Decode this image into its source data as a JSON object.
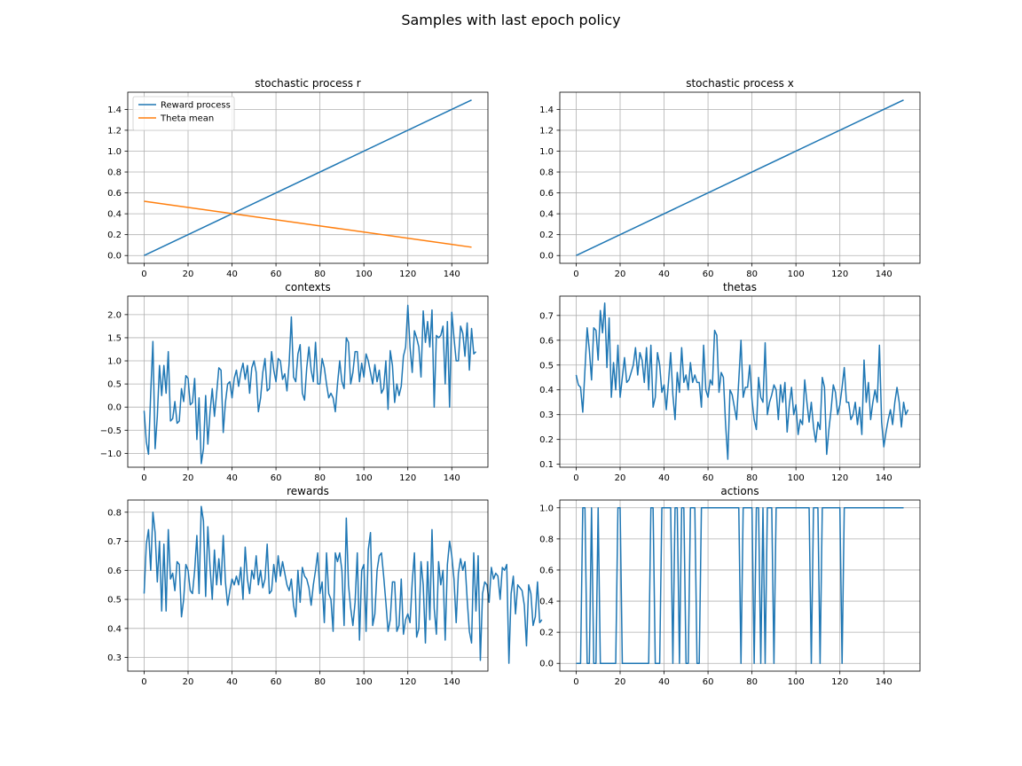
{
  "figure": {
    "title": "Samples with last epoch policy",
    "colors": {
      "blue": "#1f77b4",
      "orange": "#ff7f0e",
      "grid": "#b0b0b0"
    }
  },
  "chart_data": [
    {
      "id": "r",
      "type": "line",
      "title": "stochastic process r",
      "xlim": [
        -7.45,
        156.45
      ],
      "ylim": [
        -0.0745,
        1.5645
      ],
      "xticks": [
        0,
        20,
        40,
        60,
        80,
        100,
        120,
        140
      ],
      "yticks": [
        0.0,
        0.2,
        0.4,
        0.6,
        0.8,
        1.0,
        1.2,
        1.4
      ],
      "ytick_decimals": 1,
      "grid": true,
      "legend": {
        "placement": "top-left",
        "entries": [
          "Reward process",
          "Theta mean"
        ]
      },
      "series": [
        {
          "name": "Reward process",
          "color": "#1f77b4",
          "x": [
            0,
            149
          ],
          "y": [
            0.0,
            1.49
          ]
        },
        {
          "name": "Theta mean",
          "color": "#ff7f0e",
          "x": [
            0,
            149
          ],
          "y": [
            0.52,
            0.08
          ]
        }
      ]
    },
    {
      "id": "x",
      "type": "line",
      "title": "stochastic process x",
      "xlim": [
        -7.45,
        156.45
      ],
      "ylim": [
        -0.0745,
        1.5645
      ],
      "xticks": [
        0,
        20,
        40,
        60,
        80,
        100,
        120,
        140
      ],
      "yticks": [
        0.0,
        0.2,
        0.4,
        0.6,
        0.8,
        1.0,
        1.2,
        1.4
      ],
      "ytick_decimals": 1,
      "grid": true,
      "series": [
        {
          "color": "#1f77b4",
          "x": [
            0,
            149
          ],
          "y": [
            0.0,
            1.49
          ]
        }
      ]
    },
    {
      "id": "contexts",
      "type": "line",
      "title": "contexts",
      "xlim": [
        -7.45,
        156.45
      ],
      "ylim": [
        -1.3,
        2.4
      ],
      "xticks": [
        0,
        20,
        40,
        60,
        80,
        100,
        120,
        140
      ],
      "yticks": [
        -1.0,
        -0.5,
        0.0,
        0.5,
        1.0,
        1.5,
        2.0
      ],
      "ytick_decimals": 1,
      "grid": true,
      "series": [
        {
          "color": "#1f77b4",
          "y": [
            -0.08,
            -0.75,
            -1.02,
            0.3,
            1.42,
            -0.9,
            -0.2,
            0.9,
            0.25,
            0.9,
            0.3,
            1.2,
            -0.3,
            -0.25,
            0.12,
            -0.35,
            -0.3,
            0.4,
            0.12,
            0.68,
            0.62,
            0.05,
            0.1,
            0.62,
            -0.7,
            0.2,
            -1.22,
            -0.9,
            0.25,
            -0.8,
            -0.1,
            0.4,
            -0.2,
            0.3,
            0.85,
            0.8,
            -0.55,
            0.1,
            0.5,
            0.55,
            0.2,
            0.62,
            0.8,
            0.45,
            0.75,
            0.95,
            0.6,
            0.9,
            0.3,
            0.85,
            1.0,
            0.75,
            -0.1,
            0.2,
            0.75,
            1.05,
            0.35,
            0.4,
            1.2,
            0.8,
            0.55,
            1.05,
            1.0,
            0.6,
            0.72,
            0.35,
            0.95,
            1.95,
            0.65,
            0.55,
            1.15,
            1.35,
            0.3,
            0.15,
            0.85,
            1.3,
            0.8,
            0.55,
            1.4,
            0.5,
            0.5,
            1.05,
            0.85,
            0.5,
            0.2,
            0.3,
            0.2,
            -0.1,
            0.5,
            1.0,
            0.55,
            0.4,
            1.5,
            1.4,
            0.5,
            0.75,
            1.2,
            1.2,
            0.55,
            0.95,
            0.65,
            1.15,
            1.0,
            0.75,
            0.5,
            0.92,
            0.55,
            0.8,
            0.3,
            0.4,
            1.0,
            -0.05,
            1.22,
            0.9,
            0.1,
            0.5,
            0.25,
            0.45,
            1.1,
            1.3,
            2.2,
            1.3,
            0.75,
            1.65,
            1.5,
            1.3,
            0.65,
            2.08,
            1.4,
            1.85,
            1.3,
            2.1,
            0.0,
            1.55,
            1.5,
            1.55,
            1.75,
            0.5,
            1.85,
            0.0,
            2.05,
            1.5,
            1.0,
            1.0,
            1.75,
            1.6,
            1.1,
            1.82,
            0.8,
            1.7,
            1.15,
            1.2
          ]
        }
      ]
    },
    {
      "id": "thetas",
      "type": "line",
      "title": "thetas",
      "xlim": [
        -7.45,
        156.45
      ],
      "ylim": [
        0.088,
        0.778
      ],
      "xticks": [
        0,
        20,
        40,
        60,
        80,
        100,
        120,
        140
      ],
      "yticks": [
        0.1,
        0.2,
        0.3,
        0.4,
        0.5,
        0.6,
        0.7
      ],
      "ytick_decimals": 1,
      "grid": true,
      "series": [
        {
          "color": "#1f77b4",
          "y": [
            0.46,
            0.42,
            0.41,
            0.31,
            0.48,
            0.65,
            0.56,
            0.44,
            0.65,
            0.64,
            0.52,
            0.72,
            0.63,
            0.75,
            0.49,
            0.69,
            0.37,
            0.51,
            0.4,
            0.58,
            0.37,
            0.45,
            0.53,
            0.43,
            0.44,
            0.47,
            0.5,
            0.57,
            0.46,
            0.55,
            0.52,
            0.43,
            0.57,
            0.4,
            0.58,
            0.33,
            0.37,
            0.55,
            0.5,
            0.39,
            0.42,
            0.32,
            0.43,
            0.55,
            0.38,
            0.28,
            0.47,
            0.39,
            0.57,
            0.43,
            0.46,
            0.4,
            0.51,
            0.43,
            0.46,
            0.43,
            0.43,
            0.33,
            0.58,
            0.4,
            0.37,
            0.44,
            0.42,
            0.64,
            0.62,
            0.39,
            0.47,
            0.45,
            0.26,
            0.12,
            0.4,
            0.38,
            0.33,
            0.28,
            0.44,
            0.6,
            0.37,
            0.41,
            0.41,
            0.5,
            0.36,
            0.28,
            0.24,
            0.45,
            0.37,
            0.35,
            0.59,
            0.3,
            0.35,
            0.38,
            0.42,
            0.4,
            0.28,
            0.42,
            0.35,
            0.43,
            0.23,
            0.34,
            0.41,
            0.3,
            0.34,
            0.22,
            0.28,
            0.26,
            0.44,
            0.35,
            0.27,
            0.35,
            0.25,
            0.19,
            0.27,
            0.24,
            0.45,
            0.41,
            0.14,
            0.24,
            0.32,
            0.42,
            0.39,
            0.3,
            0.34,
            0.41,
            0.49,
            0.35,
            0.35,
            0.28,
            0.3,
            0.35,
            0.26,
            0.33,
            0.22,
            0.52,
            0.35,
            0.43,
            0.28,
            0.35,
            0.4,
            0.35,
            0.58,
            0.27,
            0.17,
            0.23,
            0.28,
            0.32,
            0.26,
            0.35,
            0.41,
            0.35,
            0.25,
            0.35,
            0.3,
            0.32
          ]
        }
      ]
    },
    {
      "id": "rewards",
      "type": "line",
      "title": "rewards",
      "xlim": [
        -7.45,
        156.45
      ],
      "ylim": [
        0.253,
        0.842
      ],
      "xticks": [
        0,
        20,
        40,
        60,
        80,
        100,
        120,
        140
      ],
      "yticks": [
        0.3,
        0.4,
        0.5,
        0.6,
        0.7,
        0.8
      ],
      "ytick_decimals": 1,
      "grid": true,
      "series": [
        {
          "color": "#1f77b4",
          "y": [
            0.52,
            0.69,
            0.74,
            0.6,
            0.8,
            0.73,
            0.56,
            0.7,
            0.46,
            0.69,
            0.46,
            0.74,
            0.57,
            0.59,
            0.53,
            0.63,
            0.62,
            0.44,
            0.5,
            0.62,
            0.6,
            0.53,
            0.52,
            0.6,
            0.72,
            0.52,
            0.82,
            0.77,
            0.51,
            0.75,
            0.61,
            0.5,
            0.67,
            0.55,
            0.64,
            0.55,
            0.72,
            0.56,
            0.48,
            0.53,
            0.57,
            0.55,
            0.58,
            0.55,
            0.61,
            0.5,
            0.68,
            0.57,
            0.52,
            0.6,
            0.57,
            0.65,
            0.55,
            0.6,
            0.54,
            0.57,
            0.69,
            0.52,
            0.53,
            0.62,
            0.56,
            0.65,
            0.58,
            0.63,
            0.59,
            0.55,
            0.53,
            0.57,
            0.48,
            0.44,
            0.6,
            0.49,
            0.61,
            0.58,
            0.57,
            0.54,
            0.48,
            0.55,
            0.6,
            0.66,
            0.52,
            0.56,
            0.42,
            0.66,
            0.52,
            0.5,
            0.39,
            0.66,
            0.63,
            0.66,
            0.6,
            0.41,
            0.78,
            0.55,
            0.47,
            0.41,
            0.49,
            0.66,
            0.36,
            0.6,
            0.62,
            0.39,
            0.67,
            0.73,
            0.41,
            0.45,
            0.6,
            0.65,
            0.66,
            0.58,
            0.49,
            0.39,
            0.43,
            0.56,
            0.56,
            0.39,
            0.41,
            0.57,
            0.38,
            0.43,
            0.45,
            0.42,
            0.56,
            0.66,
            0.37,
            0.4,
            0.63,
            0.55,
            0.35,
            0.63,
            0.43,
            0.74,
            0.47,
            0.38,
            0.63,
            0.55,
            0.6,
            0.36,
            0.62,
            0.7,
            0.65,
            0.57,
            0.42,
            0.59,
            0.64,
            0.6,
            0.63,
            0.5,
            0.39,
            0.35,
            0.66,
            0.46,
            0.65,
            0.29,
            0.52,
            0.56,
            0.55,
            0.49,
            0.61,
            0.57,
            0.59,
            0.58,
            0.5,
            0.61,
            0.6,
            0.62,
            0.28,
            0.52,
            0.58,
            0.45,
            0.55,
            0.54,
            0.53,
            0.48,
            0.34,
            0.55,
            0.52,
            0.41,
            0.44,
            0.56,
            0.42,
            0.43
          ]
        }
      ]
    },
    {
      "id": "actions",
      "type": "line",
      "title": "actions",
      "xlim": [
        -7.45,
        156.45
      ],
      "ylim": [
        -0.05,
        1.05
      ],
      "xticks": [
        0,
        20,
        40,
        60,
        80,
        100,
        120,
        140
      ],
      "yticks": [
        0.0,
        0.2,
        0.4,
        0.6,
        0.8,
        1.0
      ],
      "ytick_decimals": 1,
      "grid": true,
      "series": [
        {
          "color": "#1f77b4",
          "y": [
            0,
            0,
            0,
            1,
            1,
            0,
            0,
            1,
            0,
            0,
            1,
            0,
            0,
            0,
            0,
            0,
            0,
            0,
            0,
            1,
            1,
            0,
            0,
            0,
            0,
            0,
            0,
            0,
            0,
            0,
            0,
            0,
            0,
            0,
            1,
            1,
            0,
            0,
            0,
            1,
            1,
            1,
            1,
            1,
            0,
            1,
            1,
            0,
            1,
            1,
            0,
            0,
            1,
            1,
            1,
            0,
            0,
            1,
            1,
            1,
            1,
            1,
            1,
            1,
            1,
            1,
            1,
            1,
            1,
            1,
            1,
            1,
            1,
            1,
            1,
            0,
            1,
            1,
            1,
            1,
            1,
            0,
            1,
            1,
            0,
            1,
            0,
            1,
            1,
            1,
            0,
            1,
            1,
            1,
            1,
            1,
            1,
            1,
            1,
            1,
            1,
            1,
            1,
            1,
            1,
            1,
            1,
            0,
            1,
            1,
            1,
            0,
            1,
            1,
            1,
            1,
            1,
            1,
            1,
            1,
            1,
            0,
            1,
            1,
            1,
            1,
            1,
            1,
            1,
            1,
            1,
            1,
            1,
            1,
            1,
            1,
            1,
            1,
            1,
            1,
            1,
            1,
            1,
            1,
            1,
            1,
            1,
            1,
            1,
            1
          ]
        }
      ]
    }
  ]
}
